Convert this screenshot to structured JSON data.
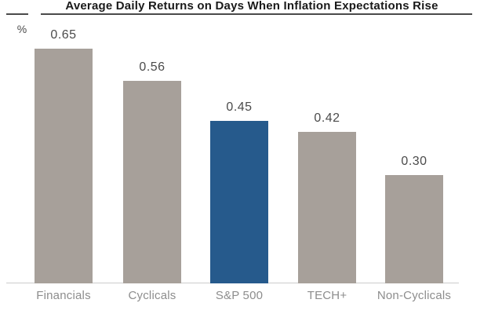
{
  "header": {
    "title": "Average Daily Returns on Days When Inflation Expectations Rise",
    "y_axis_unit_label": "%"
  },
  "chart_data": {
    "type": "bar",
    "title": "Average Daily Returns on Days When Inflation Expectations Rise",
    "ylabel": "%",
    "categories": [
      "Financials",
      "Cyclicals",
      "S&P 500",
      "TECH+",
      "Non-Cyclicals"
    ],
    "values": [
      0.65,
      0.56,
      0.45,
      0.42,
      0.3
    ],
    "value_labels": [
      "0.65",
      "0.56",
      "0.45",
      "0.42",
      "0.30"
    ],
    "highlight_index": 2,
    "highlight_category": "S&P 500",
    "ylim": [
      0,
      0.7
    ],
    "grid": false,
    "legend": false,
    "colors": {
      "bar_default": "#a7a09a",
      "bar_highlight": "#265a8c",
      "value_label": "#4b4b4b",
      "category_label": "#8d8d8d",
      "title": "#1a1a1a",
      "rule": "#4a4a4a",
      "axis_line": "#cccccc"
    }
  }
}
